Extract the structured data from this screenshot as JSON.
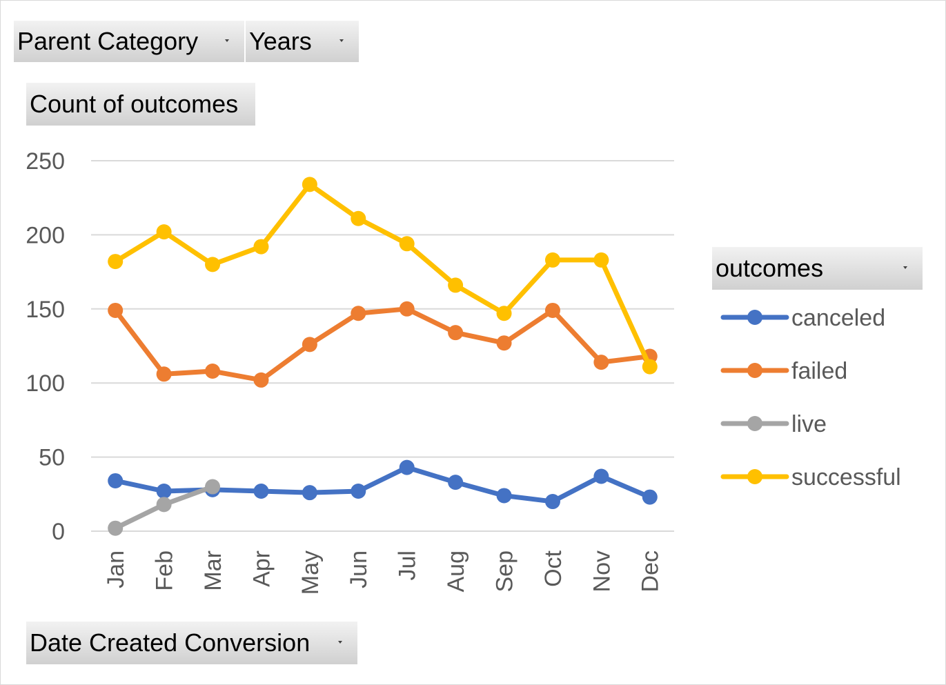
{
  "fields": {
    "parent_category": "Parent Category",
    "years": "Years",
    "values_label": "Count of outcomes",
    "axis_field": "Date Created Conversion",
    "legend_field": "outcomes"
  },
  "chart_data": {
    "type": "line",
    "title": "",
    "xlabel": "",
    "ylabel": "",
    "categories": [
      "Jan",
      "Feb",
      "Mar",
      "Apr",
      "May",
      "Jun",
      "Jul",
      "Aug",
      "Sep",
      "Oct",
      "Nov",
      "Dec"
    ],
    "ylim": [
      0,
      250
    ],
    "yticks": [
      0,
      50,
      100,
      150,
      200,
      250
    ],
    "grid": true,
    "legend_position": "right",
    "series": [
      {
        "name": "canceled",
        "color": "#4472C4",
        "values": [
          34,
          27,
          28,
          27,
          26,
          27,
          43,
          33,
          24,
          20,
          37,
          23
        ]
      },
      {
        "name": "failed",
        "color": "#ED7D31",
        "values": [
          149,
          106,
          108,
          102,
          126,
          147,
          150,
          134,
          127,
          149,
          114,
          118
        ]
      },
      {
        "name": "live",
        "color": "#A5A5A5",
        "values": [
          2,
          18,
          30,
          null,
          null,
          null,
          null,
          null,
          null,
          null,
          null,
          null
        ]
      },
      {
        "name": "successful",
        "color": "#FFC000",
        "values": [
          182,
          202,
          180,
          192,
          234,
          211,
          194,
          166,
          147,
          183,
          183,
          111
        ]
      }
    ]
  }
}
